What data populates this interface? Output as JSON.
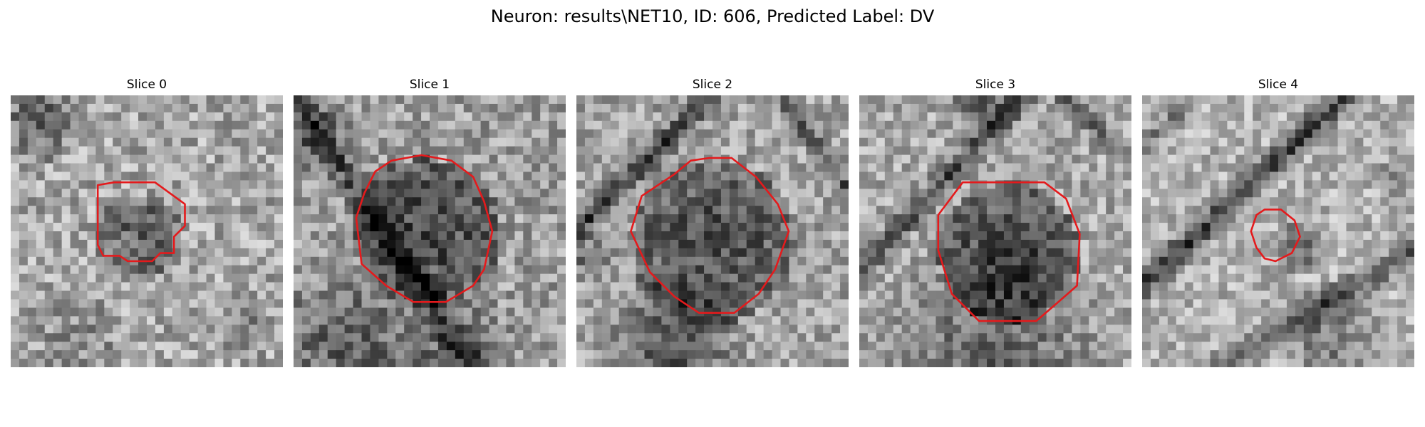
{
  "figure": {
    "title": "Neuron: results\\NET10, ID: 606, Predicted Label: DV"
  },
  "panels": [
    {
      "title": "Slice 0"
    },
    {
      "title": "Slice 1"
    },
    {
      "title": "Slice 2"
    },
    {
      "title": "Slice 3"
    },
    {
      "title": "Slice 4"
    }
  ],
  "colors": {
    "contour": "#e41a1c",
    "background": "#ffffff"
  }
}
